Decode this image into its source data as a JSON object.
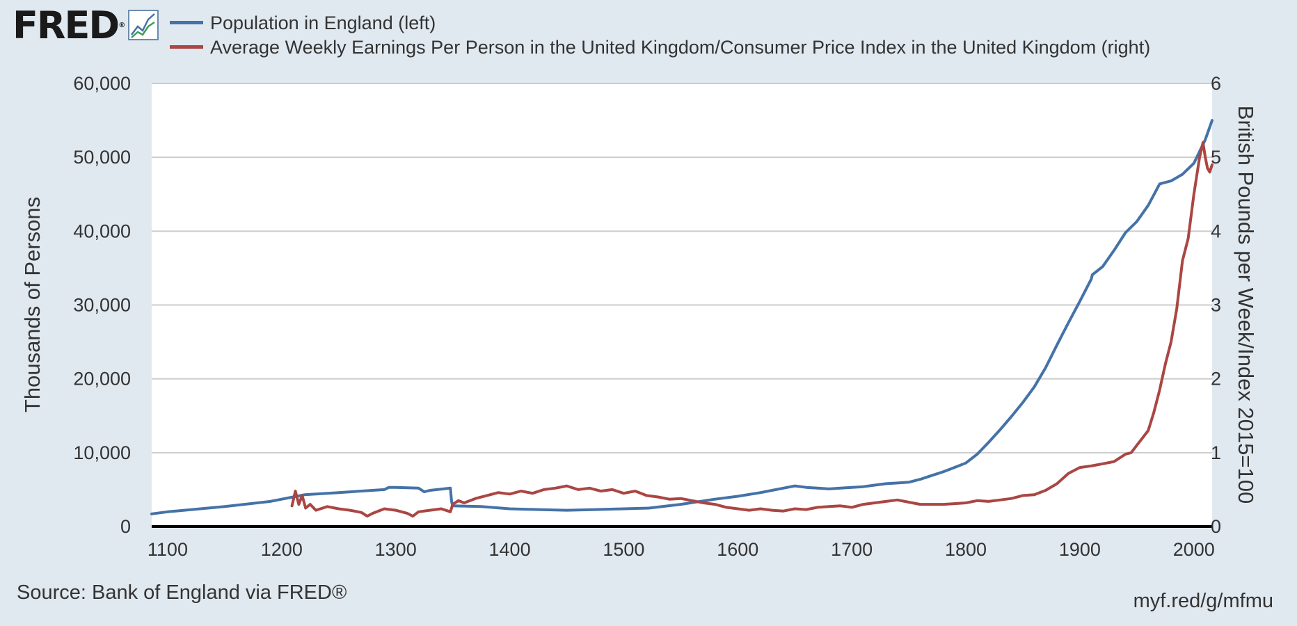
{
  "header": {
    "logo_text": "FRED",
    "logo_mark": "®",
    "logo_icon": "line-chart-icon"
  },
  "footer": {
    "source": "Source: Bank of England via FRED®",
    "short_url": "myf.red/g/mfmu"
  },
  "colors": {
    "background": "#e1e9f0",
    "plot_background": "#ffffff",
    "gridline": "#cccccc",
    "population": "#4572a7",
    "earnings": "#aa4643"
  },
  "chart_data": {
    "type": "line",
    "legend_position": "top-left",
    "grid": true,
    "x_ticks": [
      "1100",
      "1200",
      "1300",
      "1400",
      "1500",
      "1600",
      "1700",
      "1800",
      "1900",
      "2000"
    ],
    "xlim": [
      1086,
      2016
    ],
    "left_axis": {
      "label": "Thousands of Persons",
      "ylim": [
        0,
        60000
      ],
      "ticks": [
        "0",
        "10,000",
        "20,000",
        "30,000",
        "40,000",
        "50,000",
        "60,000"
      ]
    },
    "right_axis": {
      "label": "British Pounds per Week/Index 2015=100",
      "ylim": [
        0,
        6
      ],
      "ticks": [
        "0",
        "1",
        "2",
        "3",
        "4",
        "5",
        "6"
      ]
    },
    "series": [
      {
        "name": "Population in England (left)",
        "axis": "left",
        "x": [
          1086,
          1100,
          1150,
          1190,
          1200,
          1210,
          1220,
          1250,
          1290,
          1294,
          1300,
          1320,
          1325,
          1330,
          1348,
          1349,
          1350,
          1375,
          1400,
          1425,
          1450,
          1475,
          1500,
          1522,
          1550,
          1580,
          1600,
          1620,
          1630,
          1640,
          1650,
          1660,
          1670,
          1680,
          1690,
          1700,
          1710,
          1720,
          1730,
          1740,
          1750,
          1760,
          1770,
          1780,
          1790,
          1800,
          1810,
          1820,
          1830,
          1840,
          1850,
          1860,
          1870,
          1880,
          1890,
          1900,
          1910,
          1911,
          1920,
          1930,
          1940,
          1950,
          1960,
          1970,
          1980,
          1990,
          2000,
          2010,
          2016
        ],
        "values": [
          1710,
          2000,
          2700,
          3400,
          3700,
          4000,
          4300,
          4600,
          5000,
          5300,
          5300,
          5200,
          4700,
          4900,
          5200,
          3400,
          2800,
          2700,
          2400,
          2300,
          2200,
          2300,
          2400,
          2500,
          3000,
          3700,
          4100,
          4600,
          4900,
          5200,
          5500,
          5300,
          5200,
          5100,
          5200,
          5300,
          5400,
          5600,
          5800,
          5900,
          6000,
          6400,
          6900,
          7400,
          8000,
          8600,
          9800,
          11400,
          13100,
          14900,
          16800,
          18900,
          21500,
          24600,
          27600,
          30500,
          33500,
          34100,
          35200,
          37400,
          39800,
          41300,
          43500,
          46400,
          46800,
          47700,
          49200,
          52400,
          55000
        ]
      },
      {
        "name": "Average Weekly Earnings Per Person in the United Kingdom/Consumer Price Index in the United Kingdom (right)",
        "axis": "right",
        "x": [
          1209,
          1212,
          1215,
          1218,
          1221,
          1225,
          1230,
          1240,
          1250,
          1260,
          1270,
          1275,
          1280,
          1290,
          1300,
          1310,
          1315,
          1320,
          1330,
          1340,
          1348,
          1350,
          1355,
          1360,
          1370,
          1380,
          1390,
          1400,
          1410,
          1420,
          1430,
          1440,
          1450,
          1460,
          1470,
          1480,
          1490,
          1500,
          1510,
          1520,
          1530,
          1540,
          1550,
          1560,
          1570,
          1580,
          1590,
          1600,
          1610,
          1620,
          1630,
          1640,
          1650,
          1660,
          1670,
          1680,
          1690,
          1700,
          1710,
          1720,
          1730,
          1740,
          1750,
          1760,
          1770,
          1780,
          1790,
          1800,
          1810,
          1820,
          1830,
          1840,
          1850,
          1860,
          1870,
          1880,
          1890,
          1900,
          1910,
          1920,
          1930,
          1940,
          1945,
          1950,
          1955,
          1960,
          1965,
          1970,
          1975,
          1980,
          1985,
          1990,
          1995,
          2000,
          2005,
          2008,
          2010,
          2012,
          2014,
          2016
        ],
        "values": [
          0.28,
          0.48,
          0.3,
          0.42,
          0.25,
          0.3,
          0.22,
          0.27,
          0.24,
          0.22,
          0.19,
          0.14,
          0.18,
          0.24,
          0.22,
          0.18,
          0.14,
          0.2,
          0.22,
          0.24,
          0.2,
          0.3,
          0.35,
          0.32,
          0.38,
          0.42,
          0.46,
          0.44,
          0.48,
          0.45,
          0.5,
          0.52,
          0.55,
          0.5,
          0.52,
          0.48,
          0.5,
          0.45,
          0.48,
          0.42,
          0.4,
          0.37,
          0.38,
          0.35,
          0.32,
          0.3,
          0.26,
          0.24,
          0.22,
          0.24,
          0.22,
          0.21,
          0.24,
          0.23,
          0.26,
          0.27,
          0.28,
          0.26,
          0.3,
          0.32,
          0.34,
          0.36,
          0.33,
          0.3,
          0.3,
          0.3,
          0.31,
          0.32,
          0.35,
          0.34,
          0.36,
          0.38,
          0.42,
          0.43,
          0.49,
          0.58,
          0.72,
          0.8,
          0.82,
          0.85,
          0.88,
          0.98,
          1.0,
          1.1,
          1.2,
          1.3,
          1.55,
          1.85,
          2.2,
          2.5,
          2.95,
          3.6,
          3.9,
          4.5,
          5.0,
          5.2,
          5.0,
          4.85,
          4.8,
          4.9
        ]
      }
    ]
  }
}
